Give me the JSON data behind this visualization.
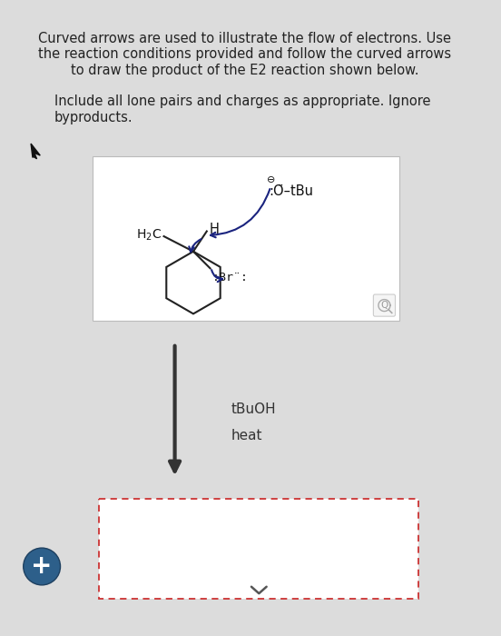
{
  "title_text": "Curved arrows are used to illustrate the flow of electrons. Use\nthe reaction conditions provided and follow the curved arrows\nto draw the product of the E2 reaction shown below.",
  "subtitle_text": "Include all lone pairs and charges as appropriate. Ignore\nbyproducts.",
  "condition1": "tBuOH",
  "condition2": "heat",
  "bg_color": "#dcdcdc",
  "box_bg": "white",
  "box_border": "#bbbbbb",
  "dashed_box_border": "#cc3333",
  "arrow_color": "#222222",
  "curved_arrow_color": "#1a237e",
  "text_color": "#222222",
  "plus_circle_fill": "#2d5f8a",
  "plus_circle_edge": "#1e4060"
}
